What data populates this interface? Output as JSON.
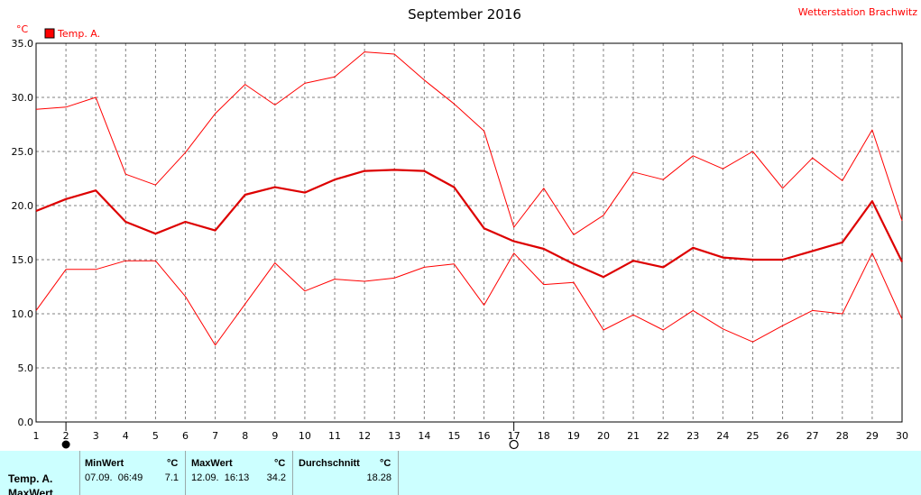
{
  "chart_data": {
    "type": "line",
    "title": "September 2016",
    "station": "Wetterstation Brachwitz",
    "yunit": "°C",
    "ylim": [
      0,
      35
    ],
    "yticks": [
      "0.0",
      "5.0",
      "10.0",
      "15.0",
      "20.0",
      "25.0",
      "30.0",
      "35.0"
    ],
    "xlim": [
      1,
      30
    ],
    "x": [
      1,
      2,
      3,
      4,
      5,
      6,
      7,
      8,
      9,
      10,
      11,
      12,
      13,
      14,
      15,
      16,
      17,
      18,
      19,
      20,
      21,
      22,
      23,
      24,
      25,
      26,
      27,
      28,
      29,
      30
    ],
    "grid": true,
    "legend": {
      "position": "top-left",
      "label": "Temp. A."
    },
    "markers": {
      "new_moon_day": 2,
      "full_moon_day": 17
    },
    "series": [
      {
        "role": "max",
        "color": "#ff0000",
        "values": [
          28.9,
          29.1,
          30.0,
          22.9,
          21.9,
          24.9,
          28.5,
          31.2,
          29.3,
          31.3,
          31.9,
          34.2,
          34.0,
          31.6,
          29.4,
          26.9,
          18.0,
          21.6,
          17.3,
          19.1,
          23.1,
          22.4,
          24.6,
          23.4,
          25.0,
          21.6,
          24.4,
          22.3,
          27.0,
          18.6
        ]
      },
      {
        "role": "mean",
        "color": "#dd0000",
        "values": [
          19.5,
          20.6,
          21.4,
          18.5,
          17.4,
          18.5,
          17.7,
          21.0,
          21.7,
          21.2,
          22.4,
          23.2,
          23.3,
          23.2,
          21.7,
          17.9,
          16.7,
          16.0,
          14.6,
          13.4,
          14.9,
          14.3,
          16.1,
          15.2,
          15.0,
          15.0,
          15.8,
          16.6,
          20.4,
          14.8
        ]
      },
      {
        "role": "min",
        "color": "#ff0000",
        "values": [
          10.3,
          14.1,
          14.1,
          14.9,
          14.9,
          11.6,
          7.1,
          10.9,
          14.7,
          12.1,
          13.2,
          13.0,
          13.3,
          14.3,
          14.6,
          10.8,
          15.6,
          12.7,
          12.9,
          8.5,
          9.9,
          8.5,
          10.3,
          8.6,
          7.4,
          8.9,
          10.3,
          10.0,
          15.6,
          9.5
        ]
      }
    ]
  },
  "stats": {
    "row_labels": [
      "Temp. A.",
      "MaxWert"
    ],
    "min": {
      "header": "MinWert",
      "unit": "°C",
      "date": "07.09.  06:49",
      "value": "7.1"
    },
    "max": {
      "header": "MaxWert",
      "unit": "°C",
      "date": "12.09.  16:13",
      "value": "34.2"
    },
    "avg": {
      "header": "Durchschnitt",
      "unit": "°C",
      "value": "18.28"
    }
  }
}
